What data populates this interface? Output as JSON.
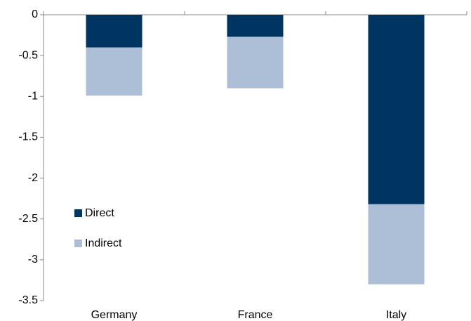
{
  "chart_data": {
    "type": "stacked_bar",
    "categories": [
      "Germany",
      "France",
      "Italy"
    ],
    "series": [
      {
        "name": "Direct",
        "color": "#003461",
        "values": [
          -0.4,
          -0.27,
          -2.32
        ]
      },
      {
        "name": "Indirect",
        "color": "#adbfd6",
        "values": [
          -0.59,
          -0.63,
          -0.98
        ]
      }
    ],
    "ylim": [
      -3.5,
      0
    ],
    "yticks": [
      0,
      -0.5,
      -1,
      -1.5,
      -2,
      -2.5,
      -3,
      -3.5
    ],
    "grid": false,
    "legend": "lower-left"
  }
}
